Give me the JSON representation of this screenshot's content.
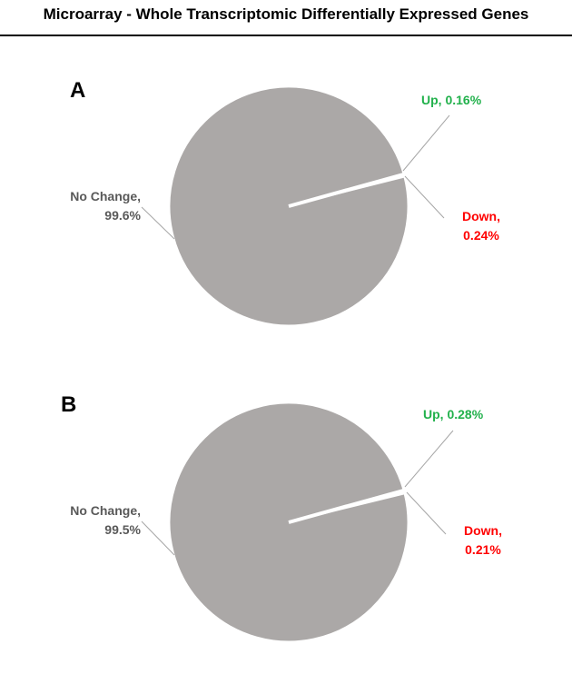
{
  "title": "Microarray - Whole Transcriptomic Differentially Expressed Genes",
  "colors": {
    "pie_fill": "#aba8a7",
    "up": "#22b14c",
    "down": "#ff0000",
    "nochange": "#595959",
    "leader": "#a6a6a6"
  },
  "chart_data": [
    {
      "type": "pie",
      "panel_label": "A",
      "categories": [
        "No Change",
        "Up",
        "Down"
      ],
      "values": [
        99.6,
        0.16,
        0.24
      ],
      "labels": {
        "nochange_name": "No Change,",
        "nochange_value": "99.6%",
        "up": "Up, 0.16%",
        "down_name": "Down,",
        "down_value": "0.24%"
      }
    },
    {
      "type": "pie",
      "panel_label": "B",
      "categories": [
        "No Change",
        "Up",
        "Down"
      ],
      "values": [
        99.5,
        0.28,
        0.21
      ],
      "labels": {
        "nochange_name": "No Change,",
        "nochange_value": "99.5%",
        "up": "Up, 0.28%",
        "down_name": "Down,",
        "down_value": "0.21%"
      }
    }
  ]
}
